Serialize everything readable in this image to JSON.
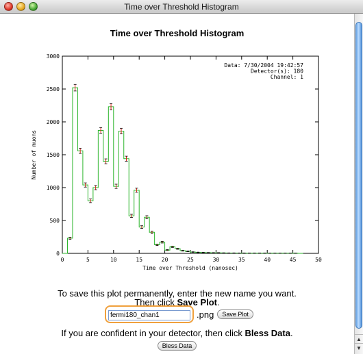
{
  "window": {
    "title": "Time over Threshold Histogram"
  },
  "chart_data": {
    "type": "histogram",
    "title": "Time over Threshold Histogram",
    "xlabel": "Time over Threshold (nanosec)",
    "ylabel": "Number of muons",
    "xlim": [
      0,
      50
    ],
    "ylim": [
      0,
      3000
    ],
    "xticks": [
      "0",
      "5",
      "10",
      "15",
      "20",
      "25",
      "30",
      "35",
      "40",
      "45",
      "50"
    ],
    "yticks": [
      "0",
      "500",
      "1000",
      "1500",
      "2000",
      "2500",
      "3000"
    ],
    "info_lines": [
      "Data: 7/30/2004 19:42:57",
      "Detector(s): 180",
      "Channel: 1"
    ],
    "bin_edges": [
      0,
      1,
      2,
      3,
      4,
      5,
      6,
      7,
      8,
      9,
      10,
      11,
      12,
      13,
      14,
      15,
      16,
      17,
      18,
      19,
      20,
      21,
      22,
      23,
      24,
      25,
      26,
      27,
      28,
      29,
      30,
      31,
      32,
      33,
      34,
      35,
      36,
      37,
      38,
      39,
      40,
      41,
      42,
      43,
      44,
      45,
      46,
      47
    ],
    "counts": [
      0,
      230,
      2520,
      1560,
      1040,
      800,
      1000,
      1870,
      1400,
      2230,
      1020,
      1860,
      1440,
      570,
      960,
      400,
      550,
      320,
      130,
      170,
      50,
      100,
      70,
      40,
      30,
      20,
      15,
      12,
      10,
      8,
      8,
      6,
      5,
      5,
      4,
      4,
      3,
      3,
      3,
      3,
      2,
      2,
      2,
      2,
      2,
      2,
      0
    ],
    "errors": [
      0,
      15,
      50,
      40,
      32,
      28,
      32,
      43,
      37,
      47,
      32,
      43,
      38,
      24,
      31,
      20,
      23,
      18,
      11,
      13,
      7,
      10,
      8,
      6,
      5,
      4,
      4,
      3,
      3,
      3,
      3,
      2,
      2,
      2,
      2,
      2,
      2,
      2,
      2,
      2,
      1,
      1,
      1,
      1,
      1,
      1,
      0
    ],
    "line_color": "#2bb52b",
    "error_color": "#e0201a",
    "grid": false
  },
  "save": {
    "instruction_line1": "To save this plot permanently, enter the new name you want.",
    "instruction_line2_prefix": "Then click ",
    "instruction_line2_bold": "Save Plot",
    "instruction_line2_suffix": ".",
    "input_value": "fermi180_chan1",
    "extension": ".png",
    "button_label": "Save Plot",
    "focus_color": "#f0a03c"
  },
  "bless": {
    "prefix": "If you are confident in your detector, then click ",
    "bold": "Bless Data",
    "suffix": ".",
    "button_label": "Bless Data"
  }
}
